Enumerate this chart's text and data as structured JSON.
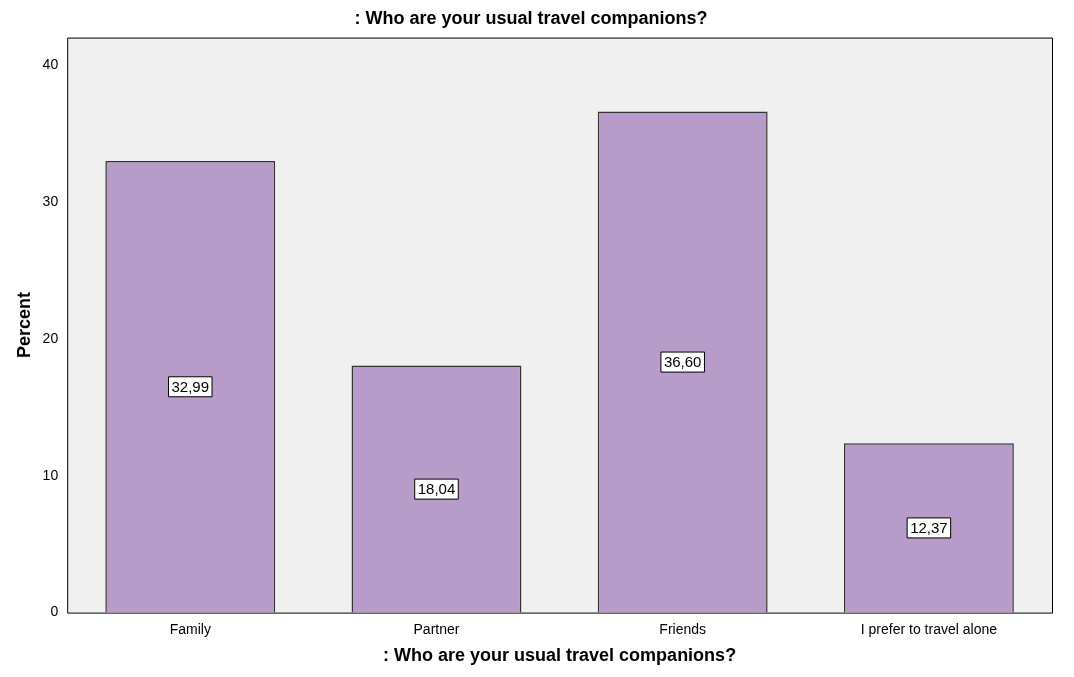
{
  "chart_data": {
    "type": "bar",
    "title": ": Who are your usual travel companions?",
    "xlabel": ": Who are your usual travel companions?",
    "ylabel": "Percent",
    "categories": [
      "Family",
      "Partner",
      "Friends",
      "I prefer to travel alone"
    ],
    "values": [
      32.99,
      18.04,
      36.6,
      12.37
    ],
    "value_labels": [
      "32,99",
      "18,04",
      "36,60",
      "12,37"
    ],
    "color": "#b79bc8",
    "ylim": [
      0,
      42
    ],
    "yticks": [
      0,
      10,
      20,
      30,
      40
    ],
    "grid": false,
    "legend": false
  }
}
